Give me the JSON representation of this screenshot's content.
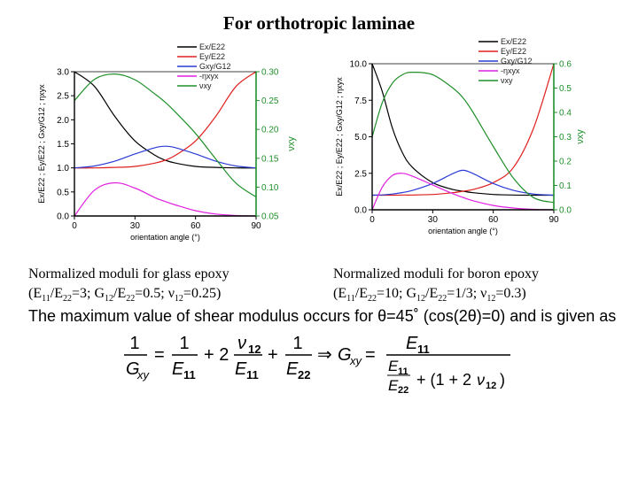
{
  "page": {
    "title": "For orthotropic laminae",
    "caption_left": {
      "line1": "Normalized moduli for glass epoxy",
      "line2": "(E11/E22=3; G12/E22=0.5; ν12=0.25)"
    },
    "caption_right": {
      "line1": "Normalized moduli for boron epoxy",
      "line2": "(E11/E22=10; G12/E22=1/3; ν12=0.3)"
    },
    "conclusion": "The maximum value of shear modulus occurs for θ=45˚ (cos(2θ)=0) and is given as"
  },
  "chart_data": [
    {
      "type": "line",
      "title": "",
      "xlabel": "orientation angle (°)",
      "ylabel_left": "Ex/E22 ; Ey/E22 ; Gxy/G12 ; ηxyx",
      "ylabel_right": "νxy",
      "xlim": [
        0,
        90
      ],
      "xticks": [
        0,
        30,
        60,
        90
      ],
      "ylim_left": [
        0,
        3.0
      ],
      "yticks_left": [
        "0.0",
        "0.5",
        "1.0",
        "1.5",
        "2.0",
        "2.5",
        "3.0"
      ],
      "ylim_right": [
        0.05,
        0.3
      ],
      "yticks_right": [
        "0.05",
        "0.10",
        "0.15",
        "0.20",
        "0.25",
        "0.30"
      ],
      "legend_position": "top-right",
      "x": [
        0,
        10,
        20,
        30,
        40,
        45,
        50,
        60,
        70,
        80,
        90
      ],
      "series": [
        {
          "name": "Ex/E22",
          "axis": "left",
          "color": "#000000",
          "values": [
            3.0,
            2.69,
            2.07,
            1.56,
            1.26,
            1.16,
            1.1,
            1.03,
            1.01,
            1.0,
            1.0
          ]
        },
        {
          "name": "Ey/E22",
          "axis": "left",
          "color": "#e0201e",
          "values": [
            1.0,
            1.0,
            1.01,
            1.03,
            1.1,
            1.16,
            1.26,
            1.56,
            2.07,
            2.69,
            3.0
          ]
        },
        {
          "name": "Gxy/G12",
          "axis": "left",
          "color": "#2a3bd4",
          "values": [
            1.0,
            1.04,
            1.14,
            1.29,
            1.42,
            1.45,
            1.42,
            1.29,
            1.14,
            1.04,
            1.0
          ]
        },
        {
          "name": "-ηxyx",
          "axis": "left",
          "color": "#e020e0",
          "values": [
            0.0,
            0.54,
            0.69,
            0.58,
            0.38,
            0.3,
            0.23,
            0.11,
            0.04,
            0.01,
            0.0
          ]
        },
        {
          "name": "νxy",
          "axis": "right",
          "color": "#1f8f2a",
          "values": [
            0.25,
            0.287,
            0.296,
            0.286,
            0.261,
            0.247,
            0.23,
            0.193,
            0.149,
            0.107,
            0.083
          ]
        }
      ]
    },
    {
      "type": "line",
      "title": "",
      "xlabel": "orientation angle (°)",
      "ylabel_left": "Ex/E22 ; Ey/E22 ; Gxy/G12 ; ηxyx",
      "ylabel_right": "νxy",
      "xlim": [
        0,
        90
      ],
      "xticks": [
        0,
        30,
        60,
        90
      ],
      "ylim_left": [
        0,
        10.0
      ],
      "yticks_left": [
        "0.0",
        "2.5",
        "5.0",
        "7.5",
        "10.0"
      ],
      "ylim_right": [
        0.0,
        0.6
      ],
      "yticks_right": [
        "0.0",
        "0.1",
        "0.2",
        "0.3",
        "0.4",
        "0.5",
        "0.6"
      ],
      "legend_position": "top-right",
      "x": [
        0,
        5,
        10,
        15,
        20,
        30,
        40,
        45,
        50,
        60,
        70,
        80,
        90
      ],
      "series": [
        {
          "name": "Ex/E22",
          "axis": "left",
          "color": "#000000",
          "values": [
            10.0,
            8.1,
            5.6,
            3.9,
            2.9,
            1.86,
            1.39,
            1.27,
            1.17,
            1.05,
            1.01,
            1.0,
            1.0
          ]
        },
        {
          "name": "Ey/E22",
          "axis": "left",
          "color": "#e0201e",
          "values": [
            1.0,
            1.0,
            1.0,
            1.01,
            1.01,
            1.05,
            1.17,
            1.27,
            1.39,
            1.86,
            2.9,
            5.6,
            10.0
          ]
        },
        {
          "name": "Gxy/G12",
          "axis": "left",
          "color": "#2a3bd4",
          "values": [
            1.0,
            1.02,
            1.08,
            1.18,
            1.33,
            1.8,
            2.48,
            2.7,
            2.48,
            1.8,
            1.33,
            1.08,
            1.0
          ]
        },
        {
          "name": "-ηxyx",
          "axis": "left",
          "color": "#e020e0",
          "values": [
            0.0,
            1.55,
            2.35,
            2.5,
            2.3,
            1.7,
            1.1,
            0.85,
            0.62,
            0.3,
            0.12,
            0.03,
            0.0
          ]
        },
        {
          "name": "νxy",
          "axis": "right",
          "color": "#1f8f2a",
          "values": [
            0.3,
            0.44,
            0.52,
            0.555,
            0.565,
            0.555,
            0.5,
            0.46,
            0.4,
            0.26,
            0.13,
            0.05,
            0.03
          ]
        }
      ]
    }
  ]
}
